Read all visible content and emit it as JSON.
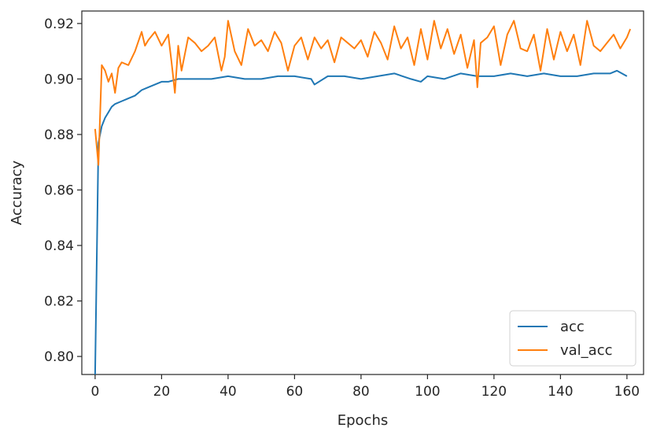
{
  "chart_data": {
    "type": "line",
    "title": "",
    "xlabel": "Epochs",
    "ylabel": "Accuracy",
    "xlim": [
      -4,
      165
    ],
    "ylim": [
      0.7935,
      0.9245
    ],
    "x_ticks": [
      0,
      20,
      40,
      60,
      80,
      100,
      120,
      140,
      160
    ],
    "x_tick_labels": [
      "0",
      "20",
      "40",
      "60",
      "80",
      "100",
      "120",
      "140",
      "160"
    ],
    "y_ticks": [
      0.8,
      0.82,
      0.84,
      0.86,
      0.88,
      0.9,
      0.92
    ],
    "y_tick_labels": [
      "0.80",
      "0.82",
      "0.84",
      "0.86",
      "0.88",
      "0.90",
      "0.92"
    ],
    "grid": false,
    "legend_position": "bottom-right",
    "series": [
      {
        "name": "acc",
        "color": "#1f77b4",
        "x": [
          0,
          1,
          2,
          3,
          4,
          5,
          6,
          8,
          10,
          12,
          14,
          16,
          18,
          20,
          22,
          25,
          30,
          35,
          40,
          45,
          50,
          55,
          60,
          65,
          66,
          70,
          75,
          80,
          85,
          90,
          95,
          98,
          100,
          105,
          110,
          115,
          120,
          125,
          130,
          135,
          140,
          145,
          150,
          155,
          157,
          160
        ],
        "y": [
          0.7935,
          0.877,
          0.883,
          0.886,
          0.888,
          0.89,
          0.891,
          0.892,
          0.893,
          0.894,
          0.896,
          0.897,
          0.898,
          0.899,
          0.899,
          0.9,
          0.9,
          0.9,
          0.901,
          0.9,
          0.9,
          0.901,
          0.901,
          0.9,
          0.898,
          0.901,
          0.901,
          0.9,
          0.901,
          0.902,
          0.9,
          0.899,
          0.901,
          0.9,
          0.902,
          0.901,
          0.901,
          0.902,
          0.901,
          0.902,
          0.901,
          0.901,
          0.902,
          0.902,
          0.903,
          0.901
        ]
      },
      {
        "name": "val_acc",
        "color": "#ff7f0e",
        "x": [
          0,
          1,
          2,
          3,
          4,
          5,
          6,
          7,
          8,
          10,
          12,
          14,
          15,
          16,
          18,
          20,
          22,
          23,
          24,
          25,
          26,
          28,
          30,
          32,
          34,
          36,
          38,
          39,
          40,
          42,
          44,
          46,
          48,
          50,
          52,
          54,
          56,
          58,
          60,
          62,
          64,
          66,
          68,
          70,
          72,
          74,
          76,
          78,
          80,
          82,
          84,
          86,
          88,
          90,
          92,
          94,
          96,
          98,
          100,
          102,
          104,
          106,
          108,
          110,
          112,
          114,
          115,
          116,
          118,
          120,
          122,
          124,
          126,
          128,
          130,
          132,
          134,
          136,
          138,
          140,
          142,
          144,
          146,
          148,
          150,
          152,
          154,
          156,
          158,
          160,
          161
        ],
        "y": [
          0.882,
          0.869,
          0.905,
          0.903,
          0.899,
          0.902,
          0.895,
          0.904,
          0.906,
          0.905,
          0.91,
          0.917,
          0.912,
          0.914,
          0.917,
          0.912,
          0.916,
          0.906,
          0.895,
          0.912,
          0.903,
          0.915,
          0.913,
          0.91,
          0.912,
          0.915,
          0.903,
          0.908,
          0.921,
          0.91,
          0.905,
          0.918,
          0.912,
          0.914,
          0.91,
          0.917,
          0.913,
          0.903,
          0.912,
          0.915,
          0.907,
          0.915,
          0.911,
          0.914,
          0.906,
          0.915,
          0.913,
          0.911,
          0.914,
          0.908,
          0.917,
          0.913,
          0.907,
          0.919,
          0.911,
          0.915,
          0.905,
          0.918,
          0.907,
          0.921,
          0.911,
          0.918,
          0.909,
          0.916,
          0.904,
          0.914,
          0.897,
          0.913,
          0.915,
          0.919,
          0.905,
          0.916,
          0.921,
          0.911,
          0.91,
          0.916,
          0.903,
          0.918,
          0.907,
          0.917,
          0.91,
          0.916,
          0.905,
          0.921,
          0.912,
          0.91,
          0.913,
          0.916,
          0.911,
          0.915,
          0.918
        ]
      }
    ]
  }
}
